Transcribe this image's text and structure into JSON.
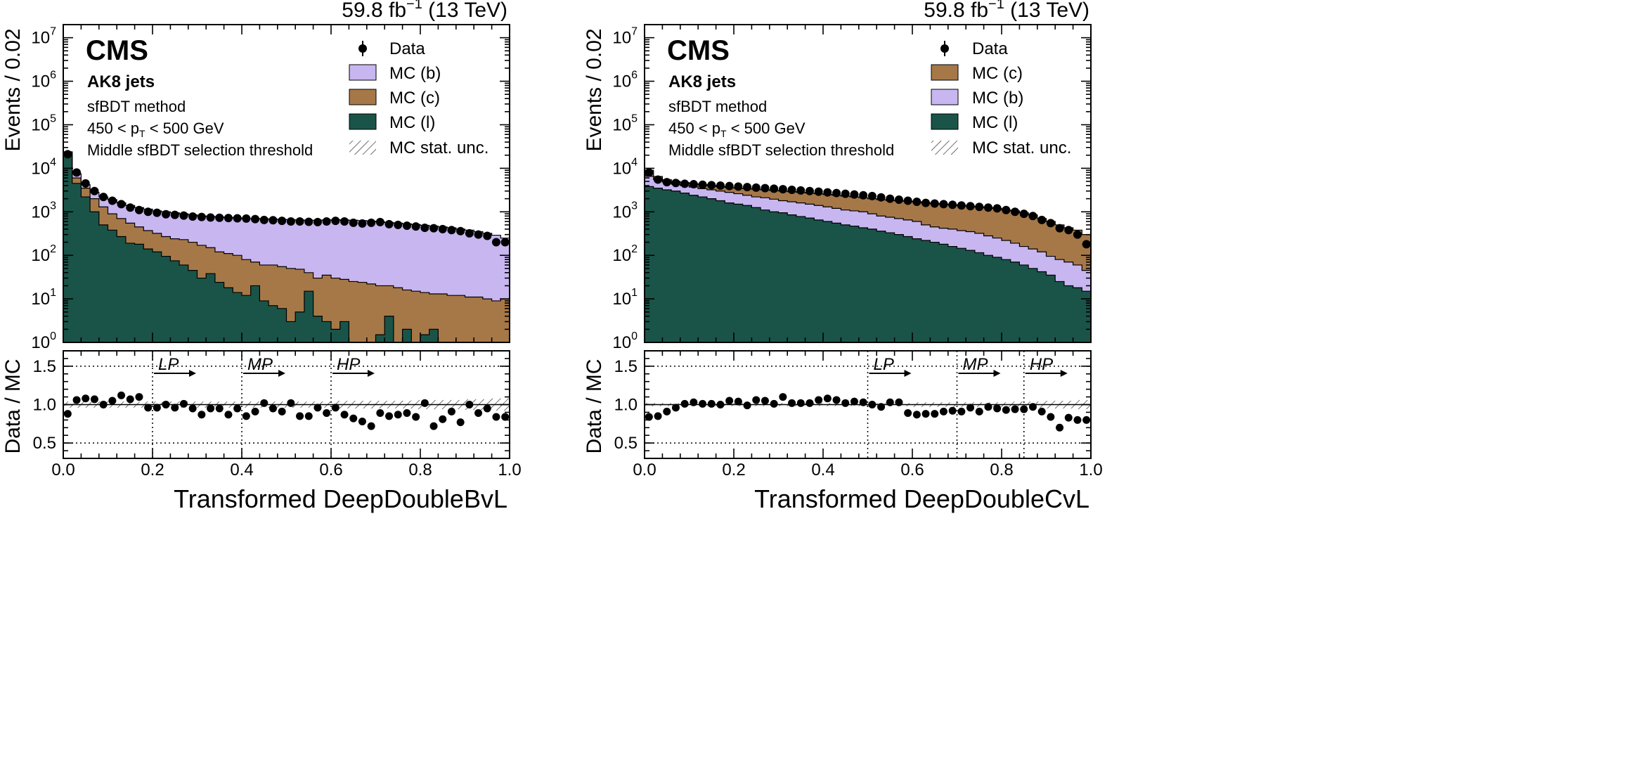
{
  "chart_data": [
    {
      "type": "histogram",
      "lumi": "59.8 fb",
      "lumi_sup": "−1",
      "energy": " (13 TeV)",
      "cms_label": "CMS",
      "jet_label": "AK8 jets",
      "method_label": "sfBDT method",
      "pt_label_pre": "450 < p",
      "pt_label_sub": "T",
      "pt_label_post": " < 500 GeV",
      "threshold_label": "Middle sfBDT selection threshold",
      "ylabel": "Events / 0.02",
      "ratio_ylabel": "Data / MC",
      "xlabel": "Transformed DeepDoubleBvL",
      "xlim": [
        0,
        1
      ],
      "ylim": [
        1,
        20000000
      ],
      "ylog": true,
      "ratio_ylim": [
        0.3,
        1.7
      ],
      "x_ticks": [
        "0.0",
        "0.2",
        "0.4",
        "0.6",
        "0.8",
        "1.0"
      ],
      "ratio_ticks": [
        "0.5",
        "1.0",
        "1.5"
      ],
      "stack_order": [
        "MC (l)",
        "MC (c)",
        "MC (b)"
      ],
      "legend": [
        "Data",
        "MC (b)",
        "MC (c)",
        "MC (l)",
        "MC stat. unc."
      ],
      "colors": {
        "MC (b)": "#c8b6f0",
        "MC (c)": "#a67848",
        "MC (l)": "#1a5448"
      },
      "thresholds": [
        {
          "x": 0.2,
          "label": "LP"
        },
        {
          "x": 0.4,
          "label": "MP"
        },
        {
          "x": 0.6,
          "label": "HP"
        }
      ],
      "mc_l": [
        22000,
        4500,
        2200,
        1000,
        500,
        380,
        270,
        190,
        180,
        140,
        120,
        95,
        75,
        60,
        45,
        30,
        38,
        24,
        18,
        14,
        12,
        20,
        9,
        7,
        6,
        3,
        5,
        15,
        4,
        3,
        2,
        3,
        1,
        1,
        1,
        1.5,
        4,
        1,
        2,
        1,
        1.5,
        2,
        1,
        1,
        1,
        1,
        1,
        1,
        1,
        1
      ],
      "mc_c": [
        23000,
        6000,
        3500,
        2000,
        1300,
        900,
        700,
        550,
        450,
        370,
        320,
        270,
        240,
        230,
        200,
        170,
        150,
        120,
        110,
        100,
        80,
        70,
        60,
        60,
        55,
        50,
        48,
        40,
        30,
        35,
        30,
        28,
        25,
        24,
        22,
        20,
        20,
        18,
        16,
        15,
        14,
        13,
        13,
        12,
        12,
        11,
        11,
        10,
        9,
        10
      ],
      "mc_total": [
        24000,
        7500,
        4200,
        2800,
        2200,
        1900,
        1600,
        1400,
        1250,
        1150,
        1050,
        1000,
        950,
        900,
        850,
        800,
        780,
        760,
        740,
        720,
        700,
        700,
        690,
        680,
        670,
        660,
        650,
        640,
        640,
        650,
        660,
        650,
        640,
        630,
        610,
        590,
        570,
        550,
        530,
        510,
        490,
        470,
        450,
        430,
        400,
        380,
        350,
        320,
        290,
        250
      ],
      "data": [
        21000,
        8000,
        4500,
        3000,
        2200,
        1800,
        1500,
        1250,
        1100,
        1000,
        950,
        880,
        850,
        820,
        780,
        760,
        740,
        730,
        720,
        710,
        700,
        680,
        650,
        640,
        620,
        600,
        600,
        590,
        580,
        600,
        620,
        600,
        560,
        540,
        560,
        580,
        520,
        500,
        480,
        460,
        430,
        420,
        400,
        380,
        360,
        320,
        300,
        280,
        200,
        200
      ],
      "ratio": [
        0.88,
        1.06,
        1.08,
        1.07,
        1.0,
        1.05,
        1.12,
        1.07,
        1.1,
        0.96,
        0.96,
        1.0,
        0.96,
        1.01,
        0.95,
        0.87,
        0.95,
        0.95,
        0.87,
        0.95,
        0.85,
        0.91,
        1.02,
        0.95,
        0.91,
        1.02,
        0.85,
        0.85,
        0.96,
        0.89,
        0.96,
        0.87,
        0.82,
        0.78,
        0.72,
        0.89,
        0.85,
        0.87,
        0.89,
        0.84,
        1.02,
        0.72,
        0.81,
        0.91,
        0.77,
        1.0,
        0.89,
        0.95,
        0.84,
        0.84
      ],
      "stat_unc": [
        0.04,
        0.04,
        0.04,
        0.04,
        0.04,
        0.04,
        0.04,
        0.04,
        0.04,
        0.04,
        0.04,
        0.04,
        0.04,
        0.04,
        0.04,
        0.04,
        0.04,
        0.04,
        0.04,
        0.04,
        0.04,
        0.04,
        0.04,
        0.04,
        0.04,
        0.04,
        0.04,
        0.04,
        0.04,
        0.04,
        0.05,
        0.05,
        0.05,
        0.05,
        0.05,
        0.05,
        0.05,
        0.05,
        0.05,
        0.06,
        0.06,
        0.06,
        0.06,
        0.06,
        0.06,
        0.07,
        0.07,
        0.07,
        0.08,
        0.08
      ]
    },
    {
      "type": "histogram",
      "lumi": "59.8 fb",
      "lumi_sup": "−1",
      "energy": " (13 TeV)",
      "cms_label": "CMS",
      "jet_label": "AK8 jets",
      "method_label": "sfBDT method",
      "pt_label_pre": "450 < p",
      "pt_label_sub": "T",
      "pt_label_post": " < 500 GeV",
      "threshold_label": "Middle sfBDT selection threshold",
      "ylabel": "Events / 0.02",
      "ratio_ylabel": "Data / MC",
      "xlabel": "Transformed DeepDoubleCvL",
      "xlim": [
        0,
        1
      ],
      "ylim": [
        1,
        20000000
      ],
      "ylog": true,
      "ratio_ylim": [
        0.3,
        1.7
      ],
      "x_ticks": [
        "0.0",
        "0.2",
        "0.4",
        "0.6",
        "0.8",
        "1.0"
      ],
      "ratio_ticks": [
        "0.5",
        "1.0",
        "1.5"
      ],
      "stack_order": [
        "MC (l)",
        "MC (b)",
        "MC (c)"
      ],
      "legend": [
        "Data",
        "MC (c)",
        "MC (b)",
        "MC (l)",
        "MC stat. unc."
      ],
      "colors": {
        "MC (b)": "#c8b6f0",
        "MC (c)": "#a67848",
        "MC (l)": "#1a5448"
      },
      "thresholds": [
        {
          "x": 0.5,
          "label": "LP"
        },
        {
          "x": 0.7,
          "label": "MP"
        },
        {
          "x": 0.85,
          "label": "HP"
        }
      ],
      "mc_l": [
        3800,
        3500,
        3200,
        3000,
        2700,
        2400,
        2200,
        2000,
        1800,
        1600,
        1500,
        1400,
        1250,
        1100,
        1000,
        950,
        850,
        780,
        720,
        650,
        600,
        550,
        500,
        470,
        430,
        400,
        360,
        330,
        300,
        270,
        240,
        220,
        200,
        180,
        160,
        145,
        130,
        115,
        100,
        90,
        80,
        70,
        60,
        50,
        42,
        35,
        25,
        20,
        18,
        15
      ],
      "mc_b": [
        6500,
        5500,
        4800,
        4300,
        4000,
        3700,
        3400,
        3200,
        3000,
        2800,
        2600,
        2400,
        2200,
        2100,
        1950,
        1800,
        1700,
        1600,
        1500,
        1400,
        1300,
        1200,
        1100,
        1050,
        1000,
        900,
        800,
        750,
        700,
        650,
        600,
        500,
        450,
        420,
        400,
        370,
        350,
        320,
        280,
        250,
        220,
        190,
        160,
        140,
        120,
        95,
        80,
        70,
        60,
        45
      ],
      "mc_total": [
        9000,
        6500,
        5500,
        5000,
        4700,
        4400,
        4200,
        4000,
        3800,
        3600,
        3500,
        3400,
        3300,
        3200,
        3100,
        3000,
        2900,
        2800,
        2700,
        2600,
        2500,
        2400,
        2300,
        2200,
        2100,
        2000,
        1900,
        1850,
        1800,
        1750,
        1700,
        1600,
        1550,
        1500,
        1450,
        1400,
        1350,
        1300,
        1250,
        1200,
        1100,
        1050,
        950,
        850,
        700,
        600,
        500,
        430,
        380,
        300
      ],
      "data": [
        8000,
        5500,
        4800,
        4600,
        4400,
        4300,
        4200,
        4100,
        4000,
        3900,
        3800,
        3700,
        3600,
        3500,
        3400,
        3300,
        3200,
        3100,
        3000,
        2900,
        2800,
        2700,
        2600,
        2500,
        2400,
        2300,
        2150,
        2000,
        1900,
        1800,
        1700,
        1600,
        1550,
        1500,
        1450,
        1400,
        1350,
        1300,
        1250,
        1200,
        1100,
        1000,
        900,
        800,
        650,
        550,
        420,
        380,
        300,
        180
      ],
      "ratio": [
        0.84,
        0.85,
        0.91,
        0.96,
        1.01,
        1.03,
        1.01,
        1.01,
        1.0,
        1.05,
        1.04,
        0.99,
        1.06,
        1.05,
        1.01,
        1.1,
        1.02,
        1.02,
        1.02,
        1.06,
        1.08,
        1.06,
        1.02,
        1.04,
        1.03,
        1.0,
        0.97,
        1.03,
        1.03,
        0.89,
        0.87,
        0.88,
        0.88,
        0.91,
        0.92,
        0.91,
        0.96,
        0.91,
        0.97,
        0.95,
        0.93,
        0.94,
        0.94,
        0.97,
        0.91,
        0.84,
        0.7,
        0.83,
        0.8,
        0.8
      ],
      "stat_unc": [
        0.02,
        0.02,
        0.02,
        0.02,
        0.02,
        0.02,
        0.02,
        0.02,
        0.02,
        0.02,
        0.02,
        0.02,
        0.02,
        0.02,
        0.02,
        0.02,
        0.02,
        0.02,
        0.02,
        0.02,
        0.02,
        0.02,
        0.02,
        0.02,
        0.02,
        0.02,
        0.02,
        0.02,
        0.02,
        0.02,
        0.03,
        0.03,
        0.03,
        0.03,
        0.03,
        0.03,
        0.03,
        0.03,
        0.03,
        0.03,
        0.03,
        0.04,
        0.04,
        0.04,
        0.04,
        0.05,
        0.05,
        0.05,
        0.06,
        0.06
      ]
    }
  ]
}
